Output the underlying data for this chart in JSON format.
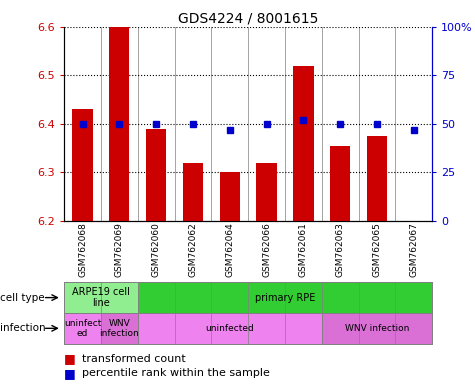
{
  "title": "GDS4224 / 8001615",
  "samples": [
    "GSM762068",
    "GSM762069",
    "GSM762060",
    "GSM762062",
    "GSM762064",
    "GSM762066",
    "GSM762061",
    "GSM762063",
    "GSM762065",
    "GSM762067"
  ],
  "transformed_counts": [
    6.43,
    6.6,
    6.39,
    6.32,
    6.3,
    6.32,
    6.52,
    6.355,
    6.375,
    6.2
  ],
  "percentile_ranks": [
    50,
    50,
    50,
    50,
    47,
    50,
    52,
    50,
    50,
    47
  ],
  "ylim_left": [
    6.2,
    6.6
  ],
  "ylim_right": [
    0,
    100
  ],
  "yticks_left": [
    6.2,
    6.3,
    6.4,
    6.5,
    6.6
  ],
  "yticks_right": [
    0,
    25,
    50,
    75,
    100
  ],
  "bar_color": "#cc0000",
  "dot_color": "#0000cc",
  "bar_baseline": 6.2,
  "cell_type_spans": [
    {
      "label": "ARPE19 cell\nline",
      "start": 0,
      "end": 2,
      "color": "#90ee90"
    },
    {
      "label": "primary RPE",
      "start": 2,
      "end": 10,
      "color": "#32cd32"
    }
  ],
  "infection_spans": [
    {
      "label": "uninfect\ned",
      "start": 0,
      "end": 1,
      "color": "#ee82ee"
    },
    {
      "label": "WNV\ninfection",
      "start": 1,
      "end": 2,
      "color": "#da70d6"
    },
    {
      "label": "uninfected",
      "start": 2,
      "end": 7,
      "color": "#ee82ee"
    },
    {
      "label": "WNV infection",
      "start": 7,
      "end": 10,
      "color": "#da70d6"
    }
  ],
  "label_cell_type": "cell type",
  "label_infection": "infection",
  "legend_bar_color": "#cc0000",
  "legend_dot_color": "#0000cc",
  "legend_items": [
    "transformed count",
    "percentile rank within the sample"
  ]
}
